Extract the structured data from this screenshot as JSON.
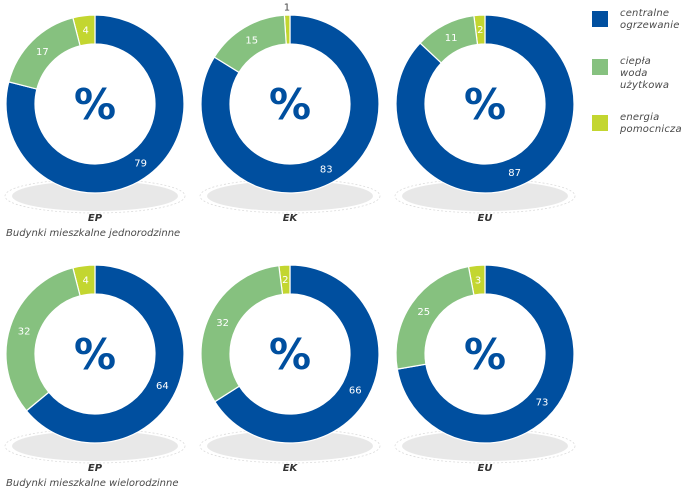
{
  "colors": {
    "central_heating": "#004f9f",
    "hot_water": "#86c17f",
    "aux_energy": "#c3d630",
    "shadow": "#e8e8e8",
    "center_text": "#004f9f"
  },
  "center_symbol": "%",
  "legend": {
    "items": [
      {
        "label": "centralne\nogrzewanie",
        "color": "#004f9f"
      },
      {
        "label": "ciepła\nwoda\nużytkowa",
        "color": "#86c17f"
      },
      {
        "label": "energia\npomocnicza",
        "color": "#c3d630"
      }
    ]
  },
  "groups": [
    {
      "title": "Budynki mieszkalne jednorodzinne"
    },
    {
      "title": "Budynki mieszkalne wielorodzinne"
    }
  ],
  "chart_data": [
    {
      "type": "pie",
      "variant": "donut",
      "group": 0,
      "label": "EP",
      "series": [
        {
          "name": "centralne ogrzewanie",
          "value": 79
        },
        {
          "name": "ciepła woda użytkowa",
          "value": 17
        },
        {
          "name": "energia pomocnicza",
          "value": 4
        }
      ]
    },
    {
      "type": "pie",
      "variant": "donut",
      "group": 0,
      "label": "EK",
      "series": [
        {
          "name": "centralne ogrzewanie",
          "value": 83
        },
        {
          "name": "ciepła woda użytkowa",
          "value": 15
        },
        {
          "name": "energia pomocnicza",
          "value": 1
        }
      ]
    },
    {
      "type": "pie",
      "variant": "donut",
      "group": 0,
      "label": "EU",
      "series": [
        {
          "name": "centralne ogrzewanie",
          "value": 87
        },
        {
          "name": "ciepła woda użytkowa",
          "value": 11
        },
        {
          "name": "energia pomocnicza",
          "value": 2
        }
      ]
    },
    {
      "type": "pie",
      "variant": "donut",
      "group": 1,
      "label": "EP",
      "series": [
        {
          "name": "centralne ogrzewanie",
          "value": 64
        },
        {
          "name": "ciepła woda użytkowa",
          "value": 32
        },
        {
          "name": "energia pomocnicza",
          "value": 4
        }
      ]
    },
    {
      "type": "pie",
      "variant": "donut",
      "group": 1,
      "label": "EK",
      "series": [
        {
          "name": "centralne ogrzewanie",
          "value": 66
        },
        {
          "name": "ciepła woda użytkowa",
          "value": 32
        },
        {
          "name": "energia pomocnicza",
          "value": 2
        }
      ]
    },
    {
      "type": "pie",
      "variant": "donut",
      "group": 1,
      "label": "EU",
      "series": [
        {
          "name": "centralne ogrzewanie",
          "value": 73
        },
        {
          "name": "ciepła woda użytkowa",
          "value": 25
        },
        {
          "name": "energia pomocnicza",
          "value": 3
        }
      ]
    }
  ]
}
